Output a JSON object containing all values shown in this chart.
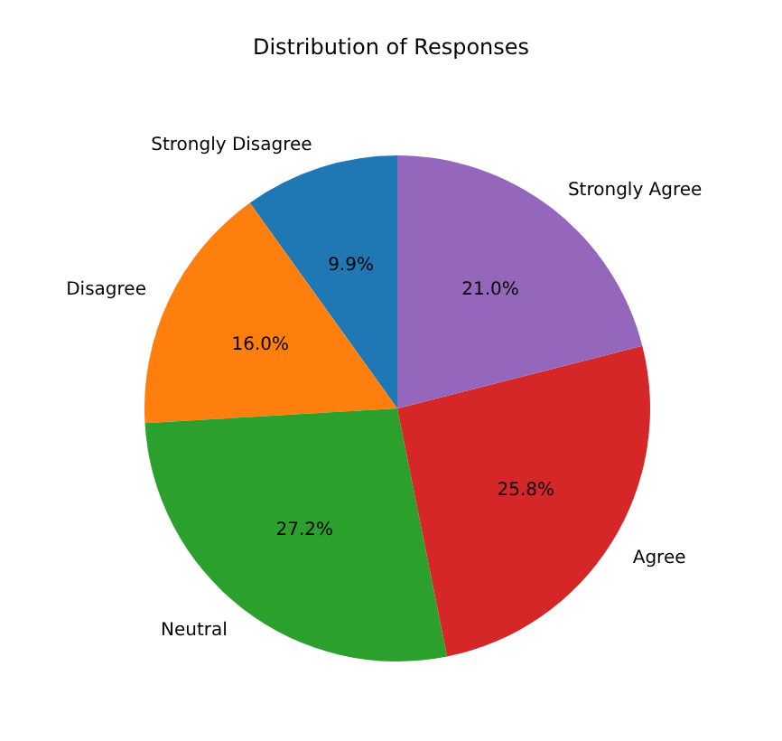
{
  "chart_data": {
    "type": "pie",
    "title": "Distribution of Responses",
    "categories": [
      "Strongly Disagree",
      "Disagree",
      "Neutral",
      "Agree",
      "Strongly Agree"
    ],
    "values": [
      9.9,
      16.0,
      27.2,
      25.8,
      21.0
    ],
    "value_labels": [
      "9.9%",
      "16.0%",
      "27.2%",
      "25.8%",
      "21.0%"
    ],
    "colors": [
      "#1f77b4",
      "#ff7f0e",
      "#2ca02c",
      "#d62728",
      "#9467bd"
    ]
  }
}
